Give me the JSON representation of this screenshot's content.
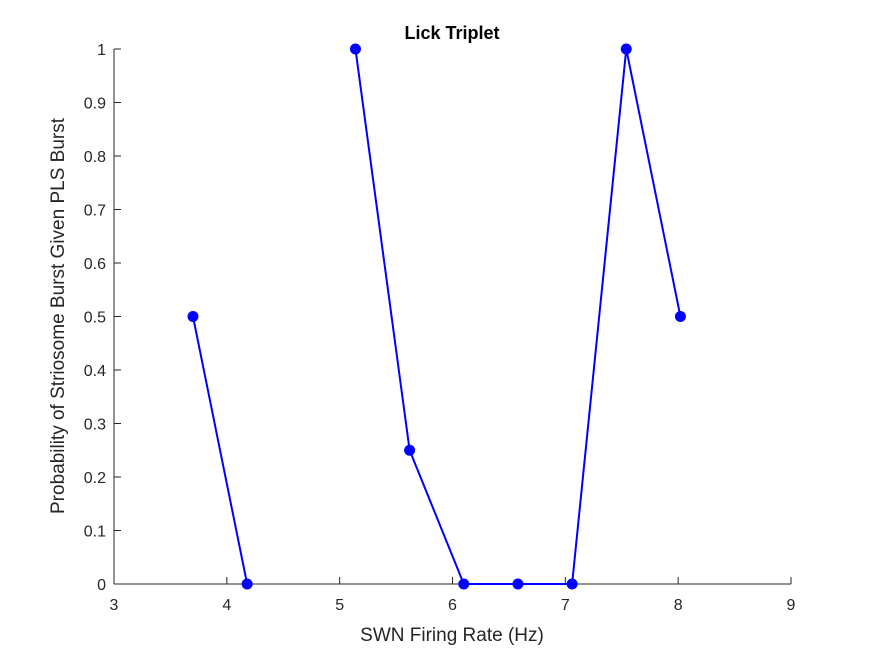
{
  "chart_data": {
    "type": "line",
    "title": "Lick Triplet",
    "xlabel": "SWN Firing Rate (Hz)",
    "ylabel": "Probability of Striosome Burst Given PLS Burst",
    "xlim": [
      3,
      9
    ],
    "ylim": [
      0,
      1
    ],
    "xticks": [
      3,
      4,
      5,
      6,
      7,
      8,
      9
    ],
    "yticks": [
      0,
      0.1,
      0.2,
      0.3,
      0.4,
      0.5,
      0.6,
      0.7,
      0.8,
      0.9,
      1
    ],
    "xtick_labels": [
      "3",
      "4",
      "5",
      "6",
      "7",
      "8",
      "9"
    ],
    "ytick_labels": [
      "0",
      "0.1",
      "0.2",
      "0.3",
      "0.4",
      "0.5",
      "0.6",
      "0.7",
      "0.8",
      "0.9",
      "1"
    ],
    "grid": false,
    "series": [
      {
        "color": "#0000ff",
        "segments": [
          [
            [
              3.7,
              0.5
            ],
            [
              4.18,
              0.0
            ]
          ],
          [
            [
              5.14,
              1.0
            ],
            [
              5.62,
              0.25
            ],
            [
              6.1,
              0.0
            ],
            [
              6.58,
              0.0
            ],
            [
              7.06,
              0.0
            ],
            [
              7.54,
              1.0
            ],
            [
              8.02,
              0.5
            ]
          ]
        ]
      }
    ]
  }
}
